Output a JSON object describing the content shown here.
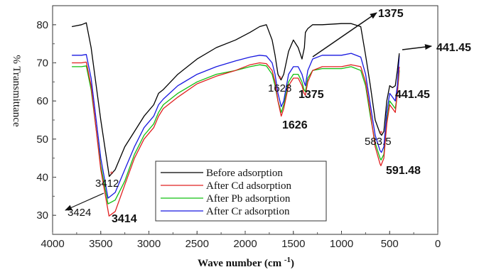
{
  "chart_data": {
    "type": "line",
    "title": "",
    "xlabel": "Wave number (cm -1)",
    "ylabel": "% Transmittance",
    "xlim": [
      4000,
      0
    ],
    "ylim": [
      25,
      85
    ],
    "xticks": [
      "4000",
      "3500",
      "3000",
      "2500",
      "2000",
      "1500",
      "1000",
      "500",
      "0"
    ],
    "yticks": [
      "30",
      "40",
      "50",
      "60",
      "70",
      "80"
    ],
    "grid": false,
    "legend_position": "bottom-center",
    "series": [
      {
        "name": "Before adsorption",
        "color": "#000000",
        "x": [
          3800,
          3700,
          3650,
          3600,
          3500,
          3412,
          3350,
          3250,
          3150,
          3050,
          2950,
          2900,
          2850,
          2700,
          2500,
          2300,
          2100,
          1950,
          1850,
          1780,
          1720,
          1690,
          1660,
          1628,
          1600,
          1550,
          1500,
          1450,
          1410,
          1385,
          1375,
          1350,
          1300,
          1200,
          1000,
          900,
          800,
          750,
          700,
          650,
          600,
          583.5,
          560,
          530,
          500,
          470,
          441.45,
          420,
          400
        ],
        "y": [
          79.5,
          80,
          80.5,
          74,
          55,
          40.2,
          42,
          48,
          52,
          56,
          59,
          62,
          63,
          67,
          71,
          74,
          76,
          78,
          79.5,
          80,
          76,
          72,
          67,
          65.5,
          67,
          73,
          76,
          74,
          71,
          74,
          78,
          79,
          80,
          80,
          80.3,
          80.3,
          79.5,
          72,
          64,
          55,
          51.5,
          51,
          52,
          60,
          64,
          63.5,
          64,
          68,
          72.5
        ]
      },
      {
        "name": "After Cd adsorption",
        "color": "#e02020",
        "x": [
          3800,
          3700,
          3650,
          3600,
          3500,
          3414,
          3350,
          3250,
          3150,
          3050,
          2950,
          2900,
          2850,
          2700,
          2500,
          2300,
          2100,
          1950,
          1850,
          1780,
          1720,
          1690,
          1660,
          1626,
          1600,
          1550,
          1500,
          1450,
          1410,
          1390,
          1375,
          1350,
          1300,
          1200,
          1000,
          900,
          800,
          750,
          700,
          650,
          600,
          591.48,
          560,
          530,
          500,
          470,
          441.45,
          420,
          400
        ],
        "y": [
          70,
          70,
          70.2,
          64,
          42,
          29.8,
          31,
          38,
          45,
          50,
          53,
          56,
          58,
          61,
          64.5,
          66.5,
          68,
          69.5,
          70,
          69.8,
          68,
          65,
          60,
          56,
          58,
          64,
          66,
          66,
          64,
          62,
          61.5,
          65,
          68,
          69,
          69,
          69.5,
          69,
          65,
          57,
          48,
          43.5,
          43,
          45,
          54,
          59,
          58,
          57,
          62,
          69
        ]
      },
      {
        "name": "After Pb adsorption",
        "color": "#10c010",
        "x": [
          3800,
          3700,
          3650,
          3600,
          3500,
          3424,
          3350,
          3250,
          3150,
          3050,
          2950,
          2900,
          2850,
          2700,
          2500,
          2300,
          2100,
          1950,
          1850,
          1780,
          1720,
          1690,
          1660,
          1626,
          1600,
          1550,
          1500,
          1450,
          1410,
          1390,
          1375,
          1350,
          1300,
          1200,
          1000,
          900,
          800,
          750,
          700,
          650,
          600,
          590,
          560,
          530,
          500,
          470,
          441.45,
          420,
          400
        ],
        "y": [
          69,
          69,
          69.2,
          63,
          43,
          33,
          34,
          39,
          46,
          51,
          54,
          57,
          59,
          62,
          65,
          67,
          68,
          69,
          69.5,
          69.2,
          67,
          64,
          60,
          57,
          59,
          65,
          67,
          67,
          65,
          63,
          62.5,
          66,
          68,
          68.5,
          68.5,
          69,
          68,
          64,
          56,
          49,
          45,
          44.5,
          46,
          55,
          60,
          59,
          58,
          62,
          68
        ]
      },
      {
        "name": "After Cr adsorption",
        "color": "#1818e0",
        "x": [
          3800,
          3700,
          3650,
          3600,
          3500,
          3424,
          3350,
          3250,
          3150,
          3050,
          2950,
          2900,
          2850,
          2700,
          2500,
          2300,
          2100,
          1950,
          1850,
          1780,
          1720,
          1690,
          1660,
          1626,
          1600,
          1550,
          1500,
          1450,
          1410,
          1390,
          1375,
          1350,
          1300,
          1200,
          1000,
          900,
          800,
          750,
          700,
          650,
          600,
          585,
          560,
          530,
          500,
          470,
          441.45,
          420,
          400
        ],
        "y": [
          72,
          72,
          72.2,
          66,
          45,
          34.5,
          36,
          42,
          48,
          53,
          56,
          59,
          60.5,
          64,
          67,
          69,
          70.5,
          71.5,
          72,
          71.8,
          70,
          67,
          62,
          58.5,
          60,
          67,
          69,
          69,
          67,
          65,
          64,
          68,
          71,
          72,
          72,
          72.5,
          71.5,
          67,
          59,
          51,
          47,
          46.5,
          48,
          57,
          62,
          61,
          60,
          64,
          72
        ]
      }
    ],
    "annotations": {
      "a1375_top": "1375",
      "a441_top": "441.45",
      "a1628": "1628",
      "a1375_mid": "1375",
      "a441_mid": "441.45",
      "a1626": "1626",
      "a583": "583.5",
      "a591": "591.48",
      "a3412": "3412",
      "a3424": "3424",
      "a3414": "3414"
    }
  }
}
